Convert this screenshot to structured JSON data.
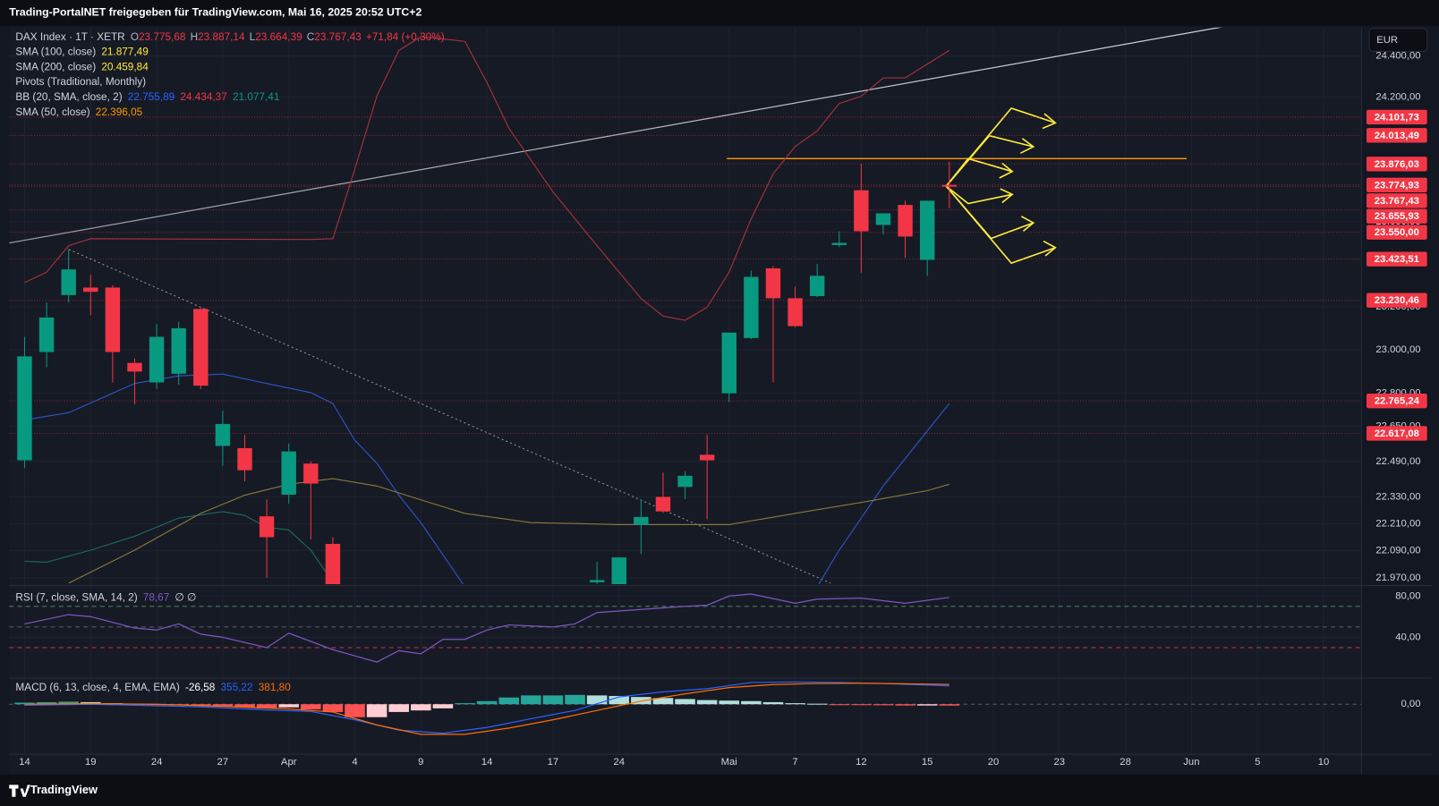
{
  "header": {
    "title": "Trading-PortalNET freigegeben für TradingView.com, Mai 16, 2025 20:52 UTC+2"
  },
  "footer": {
    "brand": "TradingView"
  },
  "chart_data": [
    {
      "type": "candlestick",
      "legend_symbol": "DAX Index · 1T · XETR",
      "legend_ohlc_prefixes": [
        "O",
        "H",
        "L",
        "C"
      ],
      "legend_ohlc": [
        "23.775,68",
        "23.887,14",
        "23.664,39",
        "23.767,43"
      ],
      "legend_change": "+71,84 (+0,30%)",
      "indicators": [
        {
          "label": "SMA (100, close)",
          "values": [
            "21.877,49"
          ],
          "colors": [
            "#ffeb3b"
          ]
        },
        {
          "label": "SMA (200, close)",
          "values": [
            "20.459,84"
          ],
          "colors": [
            "#ffeb3b"
          ]
        },
        {
          "label": "Pivots (Traditional, Monthly)",
          "values": [],
          "colors": []
        },
        {
          "label": "BB (20, SMA, close, 2)",
          "values": [
            "22.755,89",
            "24.434,37",
            "21.077,41"
          ],
          "colors": [
            "#2962ff",
            "#f23645",
            "#089981"
          ]
        },
        {
          "label": "SMA (50, close)",
          "values": [
            "22.396,05"
          ],
          "colors": [
            "#ff9800"
          ]
        }
      ],
      "currency": "EUR",
      "log": true,
      "grid": true,
      "up_color": "#089981",
      "down_color": "#f23645",
      "x": [
        0,
        1,
        2,
        3,
        4,
        5,
        6,
        7,
        8,
        9,
        10,
        11,
        12,
        13,
        14,
        26,
        27,
        28,
        29,
        30,
        31,
        32,
        33,
        34,
        35,
        36,
        37,
        38,
        39,
        40,
        41,
        42
      ],
      "open": [
        22495,
        22990,
        23255,
        23290,
        23290,
        22940,
        22850,
        22890,
        23190,
        22560,
        22550,
        22243,
        22340,
        22480,
        22120,
        21950,
        21850,
        22205,
        22330,
        22375,
        22520,
        22800,
        23055,
        23380,
        23240,
        23250,
        23490,
        23750,
        23585,
        23680,
        23420,
        23775.68
      ],
      "high": [
        23060,
        23220,
        23470,
        23350,
        23300,
        22960,
        23120,
        23130,
        23195,
        22720,
        22610,
        22318,
        22570,
        22490,
        22150,
        22040,
        22060,
        22318,
        22440,
        22445,
        22610,
        23080,
        23370,
        23390,
        23295,
        23400,
        23555,
        23876,
        23640,
        23700,
        23700,
        23887.14
      ],
      "low": [
        22460,
        22920,
        23220,
        23160,
        22850,
        22750,
        22820,
        22840,
        22820,
        22470,
        22400,
        21970,
        22300,
        22140,
        21500,
        21800,
        21800,
        22075,
        22258,
        22320,
        22230,
        22760,
        23050,
        22850,
        23105,
        23245,
        23480,
        23360,
        23540,
        23430,
        23345,
        23664.39
      ],
      "close": [
        22970,
        23150,
        23375,
        23270,
        22990,
        22900,
        23060,
        23100,
        22835,
        22660,
        22450,
        22150,
        22535,
        22390,
        21600,
        21960,
        22060,
        22240,
        22265,
        22425,
        22495,
        23080,
        23340,
        23240,
        23110,
        23345,
        23500,
        23555,
        23640,
        23530,
        23700,
        23767.43
      ],
      "overlays": [
        {
          "color": "#a8323e",
          "x": [
            0,
            1,
            2,
            3,
            13,
            14,
            15,
            16,
            17,
            18,
            20,
            21,
            22,
            24,
            26,
            28,
            29,
            30,
            31,
            32,
            33,
            34,
            35,
            36,
            37,
            38,
            39,
            40,
            41,
            42
          ],
          "values": [
            23313,
            23362,
            23487,
            23520,
            23516,
            23520,
            23851,
            24203,
            24427,
            24495,
            24472,
            24270,
            24048,
            23742,
            23487,
            23239,
            23157,
            23137,
            23198,
            23362,
            23614,
            23829,
            23960,
            24035,
            24168,
            24203,
            24293,
            24293,
            24360,
            24427
          ]
        },
        {
          "color": "#2e56c4",
          "x": [
            0,
            2,
            5,
            7,
            9,
            11,
            13,
            14,
            15,
            16,
            17,
            18,
            19,
            20,
            28,
            36,
            37,
            38,
            39,
            40,
            41,
            42
          ],
          "values": [
            22678,
            22711,
            22845,
            22880,
            22888,
            22845,
            22803,
            22753,
            22586,
            22482,
            22338,
            22215,
            22072,
            21930,
            null,
            21930,
            22092,
            22235,
            22379,
            22503,
            22628,
            22753
          ]
        },
        {
          "color": "#1b6b5f",
          "x": [
            0,
            1,
            3,
            5,
            7,
            9,
            10,
            11,
            12,
            13,
            14
          ],
          "values": [
            22043,
            22039,
            22092,
            22154,
            22235,
            22264,
            22247,
            22194,
            22182,
            22092,
            21950
          ]
        },
        {
          "color": "#8a7a3a",
          "x": [
            2,
            5,
            8,
            10,
            12,
            14,
            16,
            18,
            20,
            23,
            27,
            32,
            35,
            38,
            41,
            42
          ],
          "values": [
            21946,
            22092,
            22256,
            22338,
            22387,
            22412,
            22379,
            22317,
            22256,
            22215,
            22206,
            22206,
            22256,
            22305,
            22358,
            22387
          ]
        }
      ],
      "xlim": [
        -0.7,
        60.7
      ],
      "xticks": [
        {
          "value": 0,
          "label": "14"
        },
        {
          "value": 3,
          "label": "19"
        },
        {
          "value": 6,
          "label": "24"
        },
        {
          "value": 9,
          "label": "27"
        },
        {
          "value": 12,
          "label": "Apr"
        },
        {
          "value": 15,
          "label": "4"
        },
        {
          "value": 18,
          "label": "9"
        },
        {
          "value": 21,
          "label": "14"
        },
        {
          "value": 24,
          "label": "17"
        },
        {
          "value": 27,
          "label": "24"
        },
        {
          "value": 32,
          "label": "Mai"
        },
        {
          "value": 35,
          "label": "7"
        },
        {
          "value": 38,
          "label": "12"
        },
        {
          "value": 41,
          "label": "15"
        },
        {
          "value": 44,
          "label": "20"
        },
        {
          "value": 47,
          "label": "23"
        },
        {
          "value": 50,
          "label": "28"
        },
        {
          "value": 53,
          "label": "Jun"
        },
        {
          "value": 56,
          "label": "5"
        },
        {
          "value": 59,
          "label": "10"
        }
      ],
      "ylim": [
        21942,
        24540
      ],
      "yticks": [
        {
          "value": 24400,
          "label": "24.400,00"
        },
        {
          "value": 24200,
          "label": "24.200,00"
        },
        {
          "value": 23600,
          "label": "23.600,00"
        },
        {
          "value": 23200,
          "label": "23.200,00"
        },
        {
          "value": 23000,
          "label": "23.000,00"
        },
        {
          "value": 22800,
          "label": "22.800,00"
        },
        {
          "value": 22650,
          "label": "22.650,00"
        },
        {
          "value": 22490,
          "label": "22.490,00"
        },
        {
          "value": 22330,
          "label": "22.330,00"
        },
        {
          "value": 22210,
          "label": "22.210,00"
        },
        {
          "value": 22090,
          "label": "22.090,00"
        },
        {
          "value": 21970,
          "label": "21.970,00"
        }
      ],
      "price_levels": [
        {
          "value": 24101.73,
          "label": "24.101,73"
        },
        {
          "value": 24013.49,
          "label": "24.013,49"
        },
        {
          "value": 23876.03,
          "label": "23.876,03"
        },
        {
          "value": 23774.93,
          "label": "23.774,93"
        },
        {
          "value": 23767.43,
          "label": "23.767,43"
        },
        {
          "value": 23655.93,
          "label": "23.655,93"
        },
        {
          "value": 23550,
          "label": "23.550,00"
        },
        {
          "value": 23423.51,
          "label": "23.423,51"
        },
        {
          "value": 23230.46,
          "label": "23.230,46"
        },
        {
          "value": 22765.24,
          "label": "22.765,24"
        },
        {
          "value": 22617.08,
          "label": "22.617,08"
        }
      ],
      "level_color": "#f23645"
    },
    {
      "type": "line",
      "legend": "RSI (7, close, SMA, 14, 2)",
      "legend_value": "78,67",
      "legend_extra": "∅ ∅",
      "color": "#7e57c2",
      "x": [
        0,
        2,
        3,
        5,
        6,
        7,
        8,
        9,
        11,
        12,
        14,
        16,
        17,
        18,
        19,
        20,
        21,
        22,
        24,
        25,
        26,
        28,
        30,
        31,
        32,
        33,
        35,
        36,
        38,
        40,
        42
      ],
      "values": [
        53,
        62,
        60,
        49,
        47,
        53,
        43,
        40,
        30,
        44,
        28,
        16,
        27,
        24,
        38,
        38,
        47,
        52,
        50,
        53,
        64,
        67,
        70,
        71,
        80,
        82,
        73,
        77,
        78,
        73,
        78.67
      ],
      "ylim": [
        1.8,
        88.9
      ],
      "yticks": [
        {
          "value": 80,
          "label": "80,00"
        },
        {
          "value": 40,
          "label": "40,00"
        }
      ],
      "levels": [
        70,
        50,
        30
      ],
      "level_colors": [
        "#4c7a5a",
        "#5d606b",
        "#a33a44"
      ]
    },
    {
      "type": "macd",
      "legend": "MACD (6, 13, close, 4, EMA, EMA)",
      "legend_values": [
        "-26,58",
        "355,22",
        "381,80"
      ],
      "legend_colors": [
        "#ffffff",
        "#2962ff",
        "#ff6d00"
      ],
      "histogram": {
        "x": [
          0,
          1,
          2,
          3,
          4,
          5,
          6,
          7,
          8,
          9,
          10,
          11,
          12,
          13,
          14,
          15,
          16,
          17,
          18,
          19,
          20,
          21,
          22,
          23,
          24,
          25,
          26,
          27,
          28,
          29,
          30,
          31,
          32,
          33,
          34,
          35,
          36,
          37,
          38,
          39,
          40,
          41,
          42
        ],
        "values": [
          30,
          40,
          50,
          40,
          20,
          10,
          -10,
          -20,
          -30,
          -40,
          -60,
          -80,
          -60,
          -100,
          -150,
          -250,
          -250,
          -150,
          -120,
          -80,
          20,
          60,
          130,
          170,
          170,
          180,
          170,
          160,
          140,
          120,
          100,
          80,
          70,
          60,
          40,
          20,
          10,
          -10,
          -15,
          -20,
          -25,
          -25,
          -26.58
        ],
        "colors": [
          "#26a69a",
          "#b2dfdb",
          "#ffcdd2",
          "#ff5252"
        ]
      },
      "macd": {
        "color": "#2962ff",
        "x": [
          0,
          3,
          5,
          8,
          11,
          13,
          15,
          17,
          19,
          21,
          23,
          25,
          27,
          29,
          31,
          33,
          35,
          37,
          39,
          41,
          42
        ],
        "values": [
          -20,
          0,
          -20,
          -50,
          -110,
          -140,
          -300,
          -500,
          -560,
          -450,
          -280,
          -120,
          140,
          240,
          300,
          420,
          430,
          420,
          400,
          370,
          355.22
        ]
      },
      "signal": {
        "color": "#ff6d00",
        "x": [
          0,
          3,
          6,
          9,
          12,
          14,
          16,
          18,
          20,
          22,
          24,
          26,
          28,
          30,
          32,
          34,
          36,
          38,
          40,
          42
        ],
        "values": [
          0,
          10,
          0,
          -40,
          -90,
          -150,
          -400,
          -580,
          -580,
          -460,
          -300,
          -120,
          60,
          200,
          320,
          380,
          400,
          405,
          395,
          381.8
        ]
      },
      "ylim": [
        -956,
        496
      ],
      "yticks": [
        {
          "value": 0,
          "label": "0,00"
        }
      ]
    }
  ]
}
